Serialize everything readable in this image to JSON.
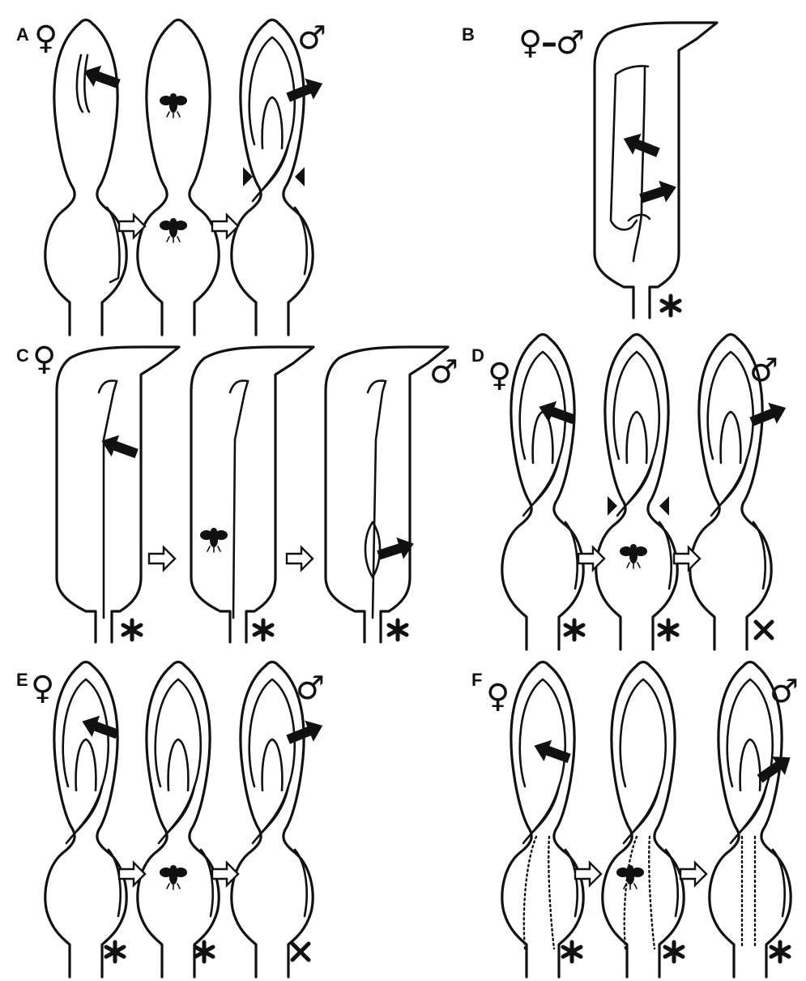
{
  "panels": [
    {
      "letter": "A",
      "left_symbol": "♀",
      "right_symbol": "♂"
    },
    {
      "letter": "B",
      "left_symbol": "♀",
      "separator": "–",
      "right_symbol": "♂"
    },
    {
      "letter": "C",
      "left_symbol": "♀",
      "right_symbol": "♂"
    },
    {
      "letter": "D",
      "left_symbol": "♀",
      "right_symbol": "♂"
    },
    {
      "letter": "E",
      "left_symbol": "♀",
      "right_symbol": "♂"
    },
    {
      "letter": "F",
      "left_symbol": "♀",
      "right_symbol": "♂"
    }
  ],
  "icons": {
    "pollen_arrow": "solid-black-arrow-icon",
    "stage_arrow": "outlined-white-arrow-icon",
    "insect": "fly-icon",
    "constriction": "black-triangle-icon",
    "asterisk": "asterisk-icon",
    "cross": "x-cross-icon"
  }
}
